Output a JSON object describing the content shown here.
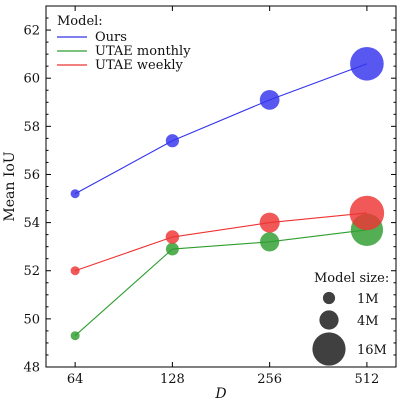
{
  "chart_data": {
    "type": "line",
    "title": "",
    "xlabel": "D",
    "ylabel": "Mean IoU",
    "x": [
      64,
      128,
      256,
      512
    ],
    "x_scale": "log2",
    "xlim": [
      52,
      630
    ],
    "ylim": [
      48,
      63
    ],
    "x_ticks": [
      64,
      128,
      256,
      512
    ],
    "y_ticks": [
      48,
      50,
      52,
      54,
      56,
      58,
      60,
      62
    ],
    "grid": false,
    "legend": {
      "title": "Model:",
      "placement": "top-left",
      "entries": [
        "Ours",
        "UTAE monthly",
        "UTAE weekly"
      ]
    },
    "series": [
      {
        "name": "Ours",
        "color": "#3333ee",
        "values": [
          55.2,
          57.4,
          59.1,
          60.6
        ],
        "model_size_M": [
          0.3,
          1.3,
          4.3,
          16.5
        ]
      },
      {
        "name": "UTAE monthly",
        "color": "#2e9e2e",
        "values": [
          49.3,
          52.9,
          53.2,
          53.7
        ],
        "model_size_M": [
          0.3,
          1.2,
          4.0,
          15.0
        ]
      },
      {
        "name": "UTAE weekly",
        "color": "#ee3333",
        "values": [
          52.0,
          53.4,
          54.0,
          54.4
        ],
        "model_size_M": [
          0.3,
          1.4,
          4.5,
          17.5
        ]
      }
    ],
    "size_legend": {
      "title": "Model size:",
      "placement": "bottom-right",
      "entries": [
        {
          "label": "1M",
          "size_M": 1
        },
        {
          "label": "4M",
          "size_M": 4
        },
        {
          "label": "16M",
          "size_M": 16
        }
      ]
    }
  }
}
